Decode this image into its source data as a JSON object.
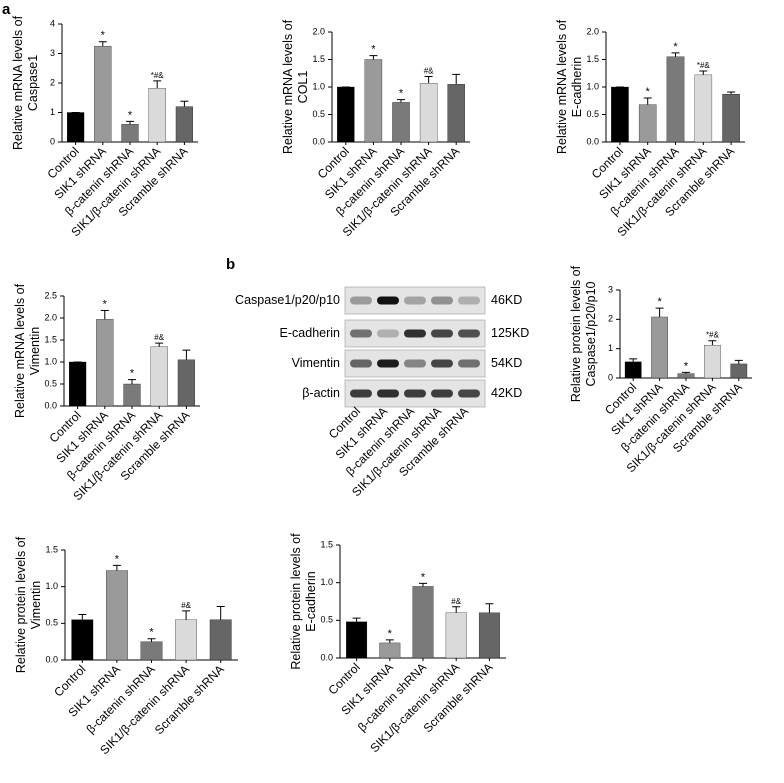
{
  "panel_labels": [
    "a",
    "b"
  ],
  "chart_data": [
    {
      "type": "bar",
      "y_label": [
        "Relative mRNA levels of",
        "Caspase1"
      ],
      "categories": [
        "Control",
        "SIK1 shRNA",
        "β-catenin shRNA",
        "SIK1/β-catenin shRNA",
        "Scramble shRNA"
      ],
      "values": [
        1.0,
        3.25,
        0.6,
        1.82,
        1.2
      ],
      "errors": [
        0,
        0.15,
        0.1,
        0.25,
        0.18
      ],
      "annotations": [
        null,
        "*",
        "*",
        "*#&",
        null
      ],
      "colors": [
        "#000000",
        "#9a9a9a",
        "#7a7a7a",
        "#dadada",
        "#666666"
      ],
      "ylim": [
        0,
        4
      ],
      "yticks": [
        0,
        1,
        2,
        3,
        4
      ]
    },
    {
      "type": "bar",
      "y_label": [
        "Relative mRNA levels of",
        "COL1"
      ],
      "categories": [
        "Control",
        "SIK1 shRNA",
        "β-catenin shRNA",
        "SIK1/β-catenin shRNA",
        "Scramble shRNA"
      ],
      "values": [
        1.0,
        1.5,
        0.72,
        1.07,
        1.05
      ],
      "errors": [
        0,
        0.07,
        0.05,
        0.12,
        0.18
      ],
      "annotations": [
        null,
        "*",
        "*",
        "#&",
        null
      ],
      "colors": [
        "#000000",
        "#9a9a9a",
        "#7a7a7a",
        "#dadada",
        "#666666"
      ],
      "ylim": [
        0,
        2
      ],
      "yticks": [
        {
          "value": 0,
          "label": "0.0"
        },
        0.5,
        {
          "value": 1,
          "label": "1.0"
        },
        1.5,
        {
          "value": 2,
          "label": "2.0"
        }
      ]
    },
    {
      "type": "bar",
      "y_label": [
        "Relative mRNA levels of",
        "E-cadherin"
      ],
      "categories": [
        "Control",
        "SIK1 shRNA",
        "β-catenin shRNA",
        "SIK1/β-catenin shRNA",
        "Scramble shRNA"
      ],
      "values": [
        1.0,
        0.68,
        1.55,
        1.22,
        0.87
      ],
      "errors": [
        0,
        0.12,
        0.07,
        0.07,
        0.04
      ],
      "annotations": [
        null,
        "*",
        "*",
        "*#&",
        null
      ],
      "colors": [
        "#000000",
        "#9a9a9a",
        "#7a7a7a",
        "#dadada",
        "#666666"
      ],
      "ylim": [
        0,
        2
      ],
      "yticks": [
        {
          "value": 0,
          "label": "0.0"
        },
        0.5,
        {
          "value": 1,
          "label": "1.0"
        },
        1.5,
        {
          "value": 2,
          "label": "2.0"
        }
      ]
    },
    {
      "type": "bar",
      "y_label": [
        "Relative mRNA levels of",
        "Vimentin"
      ],
      "categories": [
        "Control",
        "SIK1 shRNA",
        "β-catenin shRNA",
        "SIK1/β-catenin shRNA",
        "Scramble shRNA"
      ],
      "values": [
        1.0,
        1.97,
        0.5,
        1.35,
        1.05
      ],
      "errors": [
        0,
        0.2,
        0.1,
        0.08,
        0.22
      ],
      "annotations": [
        null,
        "*",
        "*",
        "#&",
        null
      ],
      "colors": [
        "#000000",
        "#9a9a9a",
        "#7a7a7a",
        "#dadada",
        "#666666"
      ],
      "ylim": [
        0,
        2.5
      ],
      "yticks": [
        {
          "value": 0,
          "label": "0.0"
        },
        0.5,
        {
          "value": 1,
          "label": "1.0"
        },
        1.5,
        {
          "value": 2,
          "label": "2.0"
        },
        2.5
      ]
    },
    {
      "type": "bar",
      "y_label": [
        "Relative protein levels of",
        "Caspase1/p20/p10"
      ],
      "categories": [
        "Control",
        "SIK1 shRNA",
        "β-catenin shRNA",
        "SIK1/β-catenin shRNA",
        "Scramble shRNA"
      ],
      "values": [
        0.55,
        2.08,
        0.15,
        1.12,
        0.48
      ],
      "errors": [
        0.1,
        0.3,
        0.04,
        0.15,
        0.12
      ],
      "annotations": [
        null,
        "*",
        "*",
        "*#&",
        null
      ],
      "colors": [
        "#000000",
        "#9a9a9a",
        "#7a7a7a",
        "#dadada",
        "#666666"
      ],
      "ylim": [
        0,
        3
      ],
      "yticks": [
        0,
        1,
        2,
        3
      ]
    },
    {
      "type": "bar",
      "y_label": [
        "Relative protein levels of",
        "Vimentin"
      ],
      "categories": [
        "Control",
        "SIK1 shRNA",
        "β-catenin shRNA",
        "SIK1/β-catenin shRNA",
        "Scramble shRNA"
      ],
      "values": [
        0.55,
        1.22,
        0.25,
        0.55,
        0.55
      ],
      "errors": [
        0.07,
        0.07,
        0.04,
        0.12,
        0.18
      ],
      "annotations": [
        null,
        "*",
        "*",
        "#&",
        null
      ],
      "colors": [
        "#000000",
        "#9a9a9a",
        "#7a7a7a",
        "#dadada",
        "#666666"
      ],
      "ylim": [
        0,
        1.5
      ],
      "yticks": [
        {
          "value": 0,
          "label": "0.0"
        },
        0.5,
        {
          "value": 1,
          "label": "1.0"
        },
        1.5
      ]
    },
    {
      "type": "bar",
      "y_label": [
        "Relative protein levels of",
        "E-cadherin"
      ],
      "categories": [
        "Control",
        "SIK1 shRNA",
        "β-catenin shRNA",
        "SIK1/β-catenin shRNA",
        "Scramble shRNA"
      ],
      "values": [
        0.48,
        0.2,
        0.95,
        0.6,
        0.6
      ],
      "errors": [
        0.05,
        0.04,
        0.04,
        0.08,
        0.12
      ],
      "annotations": [
        null,
        "*",
        "*",
        "#&",
        null
      ],
      "colors": [
        "#000000",
        "#9a9a9a",
        "#7a7a7a",
        "#dadada",
        "#666666"
      ],
      "ylim": [
        0,
        1.5
      ],
      "yticks": [
        {
          "value": 0,
          "label": "0.0"
        },
        0.5,
        {
          "value": 1,
          "label": "1.0"
        },
        1.5
      ]
    }
  ],
  "blot": {
    "rows": [
      {
        "protein": "Caspase1/p20/p10",
        "size": "46KD"
      },
      {
        "protein": "E-cadherin",
        "size": "125KD"
      },
      {
        "protein": "Vimentin",
        "size": "54KD"
      },
      {
        "protein": "β-actin",
        "size": "42KD"
      }
    ],
    "lanes": [
      "Control",
      "SIK1 shRNA",
      "β-catenin shRNA",
      "SIK1/β-catenin shRNA",
      "Scramble shRNA"
    ]
  }
}
